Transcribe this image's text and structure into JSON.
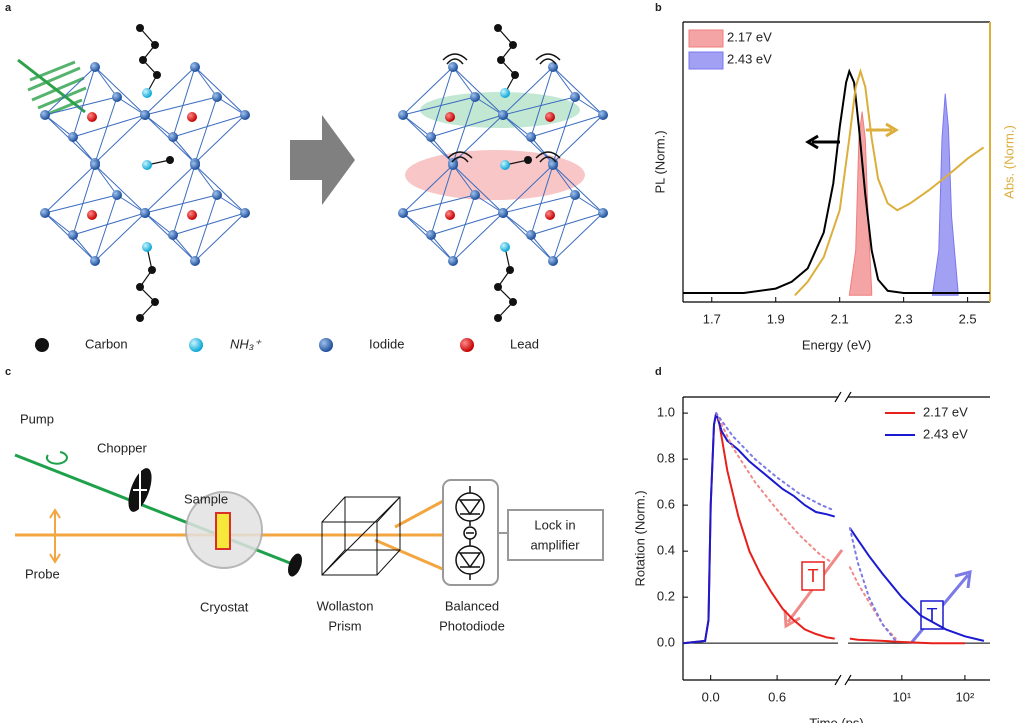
{
  "panel_a": {
    "label": "a",
    "legend": [
      "Carbon",
      "NH₃⁺",
      "Iodide",
      "Lead"
    ]
  },
  "panel_c": {
    "label": "c",
    "nodes": [
      "Pump",
      "Chopper",
      "Sample",
      "Probe",
      "Cryostat",
      [
        "Wollaston",
        "Prism"
      ],
      [
        "Balanced",
        "Photodiode"
      ],
      [
        "Lock in",
        "amplifier"
      ]
    ]
  },
  "chart_data": [
    {
      "type": "line",
      "panel": "b",
      "xlabel": "Energy (eV)",
      "ylabel": "PL (Norm.)",
      "y2label": "Abs. (Norm.)",
      "y2color": "#dcae3c",
      "xlim": [
        1.61,
        2.57
      ],
      "xticks": [
        1.7,
        1.9,
        2.1,
        2.3,
        2.5
      ],
      "ylim": [
        -0.03,
        1.22
      ],
      "y2lim": [
        -0.03,
        1.22
      ],
      "legend": "upper left",
      "series": [
        {
          "name": "2.17 eV",
          "color": "#f07e7e",
          "style": "area",
          "x": [
            2.13,
            2.15,
            2.16,
            2.17,
            2.18,
            2.19,
            2.2
          ],
          "values": [
            0,
            0.2,
            0.7,
            0.82,
            0.7,
            0.3,
            0.02
          ]
        },
        {
          "name": "2.43 eV",
          "color": "#7a78ee",
          "style": "area",
          "x": [
            2.39,
            2.41,
            2.42,
            2.43,
            2.44,
            2.45,
            2.47
          ],
          "values": [
            0,
            0.2,
            0.7,
            0.9,
            0.75,
            0.35,
            0.02
          ]
        },
        {
          "color": "#000000",
          "style": "line",
          "x": [
            1.61,
            1.8,
            1.9,
            1.95,
            2.0,
            2.05,
            2.08,
            2.1,
            2.12,
            2.13,
            2.145,
            2.16,
            2.18,
            2.2,
            2.22,
            2.25,
            2.3,
            2.57
          ],
          "values": [
            0.01,
            0.01,
            0.03,
            0.06,
            0.12,
            0.28,
            0.5,
            0.75,
            0.95,
            1.0,
            0.95,
            0.75,
            0.45,
            0.2,
            0.07,
            0.02,
            0.01,
            0.01
          ]
        },
        {
          "color": "#dcae3c",
          "style": "line",
          "axis": "y2",
          "x": [
            1.96,
            2.0,
            2.05,
            2.1,
            2.13,
            2.15,
            2.165,
            2.18,
            2.2,
            2.22,
            2.25,
            2.28,
            2.32,
            2.38,
            2.45,
            2.5,
            2.55
          ],
          "values": [
            0,
            0.06,
            0.17,
            0.38,
            0.7,
            0.93,
            1.0,
            0.93,
            0.7,
            0.52,
            0.41,
            0.38,
            0.41,
            0.47,
            0.55,
            0.61,
            0.66
          ]
        }
      ]
    },
    {
      "type": "line",
      "panel": "d",
      "xlabel": "Time (ps)",
      "ylabel": "Rotation (Norm.)",
      "legend": "upper right",
      "xlim": [
        -0.25,
        1.15
      ],
      "xticks": [
        {
          "value": 0,
          "label": "0.0"
        },
        0.6
      ],
      "x2lim": [
        1.4,
        250
      ],
      "x2scale": "log",
      "x2ticks": [
        {
          "value": 10,
          "label": "10¹"
        },
        {
          "value": 100,
          "label": "10²"
        }
      ],
      "ylim": [
        -0.16,
        1.07
      ],
      "yticks": [
        {
          "value": 0,
          "label": "0.0"
        },
        0.2,
        0.4,
        0.6,
        0.8,
        {
          "value": 1,
          "label": "1.0"
        }
      ],
      "annotations": [
        "T",
        "T"
      ],
      "series": [
        {
          "name": "2.17 eV",
          "color": "#e8201c",
          "x": [
            -0.25,
            -0.05,
            -0.02,
            0.0,
            0.03,
            0.05,
            0.08,
            0.15,
            0.25,
            0.35,
            0.45,
            0.55,
            0.65,
            0.75,
            0.85,
            0.95,
            1.05,
            1.12
          ],
          "values": [
            0,
            0.01,
            0.1,
            0.6,
            0.95,
            1.0,
            0.95,
            0.75,
            0.55,
            0.4,
            0.3,
            0.22,
            0.15,
            0.1,
            0.06,
            0.04,
            0.025,
            0.02
          ],
          "x2": [
            1.5,
            2,
            5,
            10,
            30,
            100
          ],
          "values2": [
            0.02,
            0.015,
            0.01,
            0.005,
            0.0,
            0.0
          ]
        },
        {
          "name": "2.43 eV",
          "color": "#1a1ad0",
          "x": [
            -0.25,
            -0.05,
            -0.02,
            0.0,
            0.03,
            0.05,
            0.1,
            0.15,
            0.25,
            0.35,
            0.45,
            0.55,
            0.65,
            0.75,
            0.85,
            0.95,
            1.05,
            1.12
          ],
          "values": [
            0,
            0.01,
            0.1,
            0.6,
            0.95,
            1.0,
            0.92,
            0.88,
            0.84,
            0.79,
            0.75,
            0.71,
            0.67,
            0.64,
            0.6,
            0.57,
            0.56,
            0.55
          ],
          "x2": [
            1.5,
            2,
            3,
            5,
            10,
            20,
            50,
            100,
            200
          ],
          "values2": [
            0.5,
            0.45,
            0.38,
            0.3,
            0.2,
            0.12,
            0.06,
            0.03,
            0.01
          ]
        },
        {
          "color": "#f08a88",
          "dash": true,
          "x": [
            0.05,
            0.2,
            0.4,
            0.6,
            0.8,
            1.0,
            1.1
          ],
          "values": [
            1.0,
            0.85,
            0.7,
            0.58,
            0.47,
            0.38,
            0.35
          ],
          "x2": [
            1.5,
            2,
            3,
            5,
            8
          ],
          "values2": [
            0.33,
            0.26,
            0.18,
            0.08,
            0.02
          ]
        },
        {
          "color": "#7a7ae8",
          "dash": true,
          "x": [
            0.05,
            0.2,
            0.4,
            0.6,
            0.8,
            1.0,
            1.1
          ],
          "values": [
            1.0,
            0.9,
            0.8,
            0.72,
            0.65,
            0.6,
            0.58
          ],
          "x2": [
            1.5,
            2,
            3,
            5,
            8
          ],
          "values2": [
            0.5,
            0.35,
            0.2,
            0.08,
            0.01
          ]
        }
      ]
    }
  ]
}
